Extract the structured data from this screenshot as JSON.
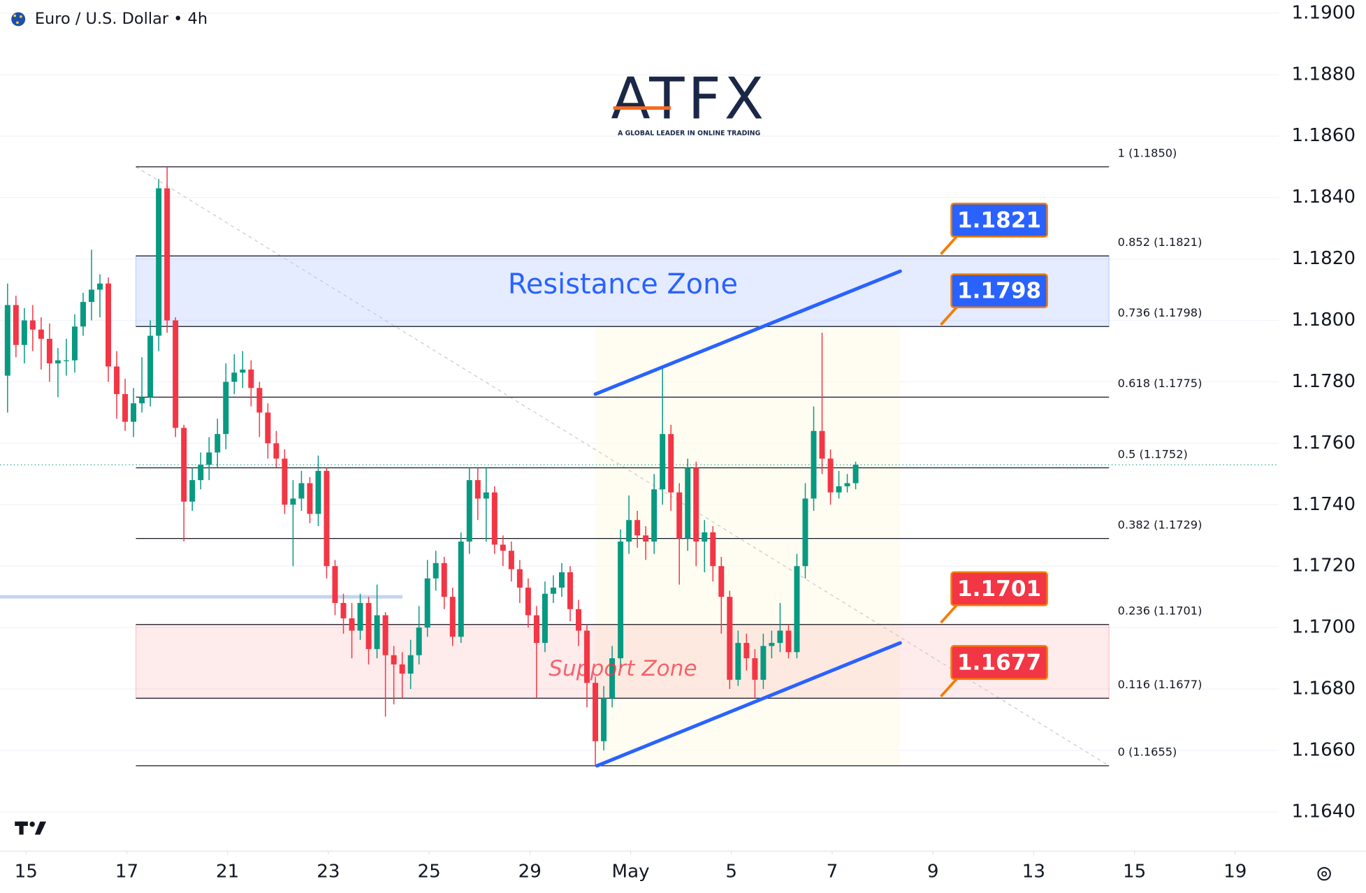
{
  "chart_data": {
    "type": "candlestick",
    "title": "Euro / U.S. Dollar • 4h",
    "watermark": {
      "name": "ATFX",
      "tagline": "A GLOBAL LEADER IN ONLINE TRADING"
    },
    "up_color": "#089981",
    "down_color": "#f23645",
    "xlim": [
      -0.9,
      151.4
    ],
    "xticks": [
      {
        "value": 2.2,
        "label": "15"
      },
      {
        "value": 14.2,
        "label": "17"
      },
      {
        "value": 26.2,
        "label": "21"
      },
      {
        "value": 38.2,
        "label": "23"
      },
      {
        "value": 50.2,
        "label": "25"
      },
      {
        "value": 62.2,
        "label": "29"
      },
      {
        "value": 74.2,
        "label": "May"
      },
      {
        "value": 86.2,
        "label": "5"
      },
      {
        "value": 98.2,
        "label": "7"
      },
      {
        "value": 110.2,
        "label": "9"
      },
      {
        "value": 122.2,
        "label": "13"
      },
      {
        "value": 134.2,
        "label": "15"
      },
      {
        "value": 146.2,
        "label": "19"
      }
    ],
    "ylim": [
      1.16272,
      1.19043
    ],
    "yticks": [
      {
        "value": 1.19,
        "label": "1.1900"
      },
      {
        "value": 1.188,
        "label": "1.1880"
      },
      {
        "value": 1.186,
        "label": "1.1860"
      },
      {
        "value": 1.184,
        "label": "1.1840"
      },
      {
        "value": 1.182,
        "label": "1.1820"
      },
      {
        "value": 1.18,
        "label": "1.1800"
      },
      {
        "value": 1.178,
        "label": "1.1780"
      },
      {
        "value": 1.176,
        "label": "1.1760"
      },
      {
        "value": 1.174,
        "label": "1.1740"
      },
      {
        "value": 1.172,
        "label": "1.1720"
      },
      {
        "value": 1.17,
        "label": "1.1700"
      },
      {
        "value": 1.168,
        "label": "1.1680"
      },
      {
        "value": 1.166,
        "label": "1.1660"
      },
      {
        "value": 1.164,
        "label": "1.1640"
      }
    ],
    "grid": true,
    "open": [
      1.1782,
      1.1805,
      1.1792,
      1.18,
      1.1797,
      1.1794,
      1.1786,
      1.1787,
      1.1787,
      1.1798,
      1.1806,
      1.181,
      1.1812,
      1.1785,
      1.1776,
      1.1767,
      1.1773,
      1.1775,
      1.1795,
      1.1843,
      1.18,
      1.1765,
      1.1741,
      1.1748,
      1.1753,
      1.1757,
      1.1763,
      1.178,
      1.1783,
      1.1784,
      1.1778,
      1.177,
      1.176,
      1.1755,
      1.174,
      1.1742,
      1.1747,
      1.1737,
      1.1751,
      1.172,
      1.1708,
      1.1703,
      1.1699,
      1.1708,
      1.1693,
      1.1704,
      1.1691,
      1.1688,
      1.1685,
      1.1691,
      1.17,
      1.1716,
      1.1721,
      1.171,
      1.1697,
      1.1728,
      1.1748,
      1.1742,
      1.1744,
      1.1727,
      1.1725,
      1.1719,
      1.1713,
      1.1704,
      1.1695,
      1.1711,
      1.1713,
      1.1718,
      1.1706,
      1.1699,
      1.1682,
      1.1663,
      1.1677,
      1.169,
      1.1728,
      1.1735,
      1.173,
      1.1728,
      1.1745,
      1.1763,
      1.1744,
      1.1729,
      1.1752,
      1.1728,
      1.1731,
      1.172,
      1.171,
      1.1683,
      1.1695,
      1.169,
      1.1683,
      1.1694,
      1.1695,
      1.1699,
      1.1692,
      1.172,
      1.1742,
      1.1764,
      1.1755,
      1.1744,
      1.1746,
      1.1747
    ],
    "high": [
      1.1812,
      1.1808,
      1.1804,
      1.1805,
      1.1801,
      1.1799,
      1.1791,
      1.1794,
      1.1802,
      1.1809,
      1.1823,
      1.1815,
      1.1814,
      1.179,
      1.1781,
      1.1778,
      1.1788,
      1.18,
      1.1846,
      1.185,
      1.1801,
      1.1766,
      1.1752,
      1.1757,
      1.1762,
      1.1768,
      1.1786,
      1.1789,
      1.179,
      1.1787,
      1.178,
      1.1773,
      1.1764,
      1.1758,
      1.1748,
      1.1751,
      1.1749,
      1.1756,
      1.1752,
      1.1722,
      1.1711,
      1.1708,
      1.1711,
      1.171,
      1.1714,
      1.1705,
      1.1694,
      1.1692,
      1.1696,
      1.1707,
      1.1722,
      1.1725,
      1.1723,
      1.1713,
      1.1731,
      1.1752,
      1.1752,
      1.1752,
      1.1746,
      1.173,
      1.1728,
      1.1722,
      1.1716,
      1.1707,
      1.1715,
      1.1717,
      1.1721,
      1.172,
      1.1709,
      1.1701,
      1.1684,
      1.1681,
      1.1694,
      1.1732,
      1.1743,
      1.1738,
      1.1733,
      1.175,
      1.1785,
      1.1766,
      1.1747,
      1.1755,
      1.1754,
      1.1735,
      1.1733,
      1.1723,
      1.1712,
      1.1699,
      1.1698,
      1.1693,
      1.1698,
      1.1699,
      1.1708,
      1.1701,
      1.1724,
      1.1747,
      1.1772,
      1.1796,
      1.1758,
      1.1751,
      1.175,
      1.1754
    ],
    "low": [
      1.177,
      1.1788,
      1.1786,
      1.179,
      1.1784,
      1.178,
      1.1775,
      1.1782,
      1.1783,
      1.1795,
      1.18,
      1.1801,
      1.178,
      1.1768,
      1.1764,
      1.1762,
      1.177,
      1.1772,
      1.179,
      1.1796,
      1.1762,
      1.1728,
      1.1738,
      1.1745,
      1.1748,
      1.1752,
      1.1758,
      1.1776,
      1.1778,
      1.1772,
      1.1762,
      1.1755,
      1.1752,
      1.1737,
      1.172,
      1.1738,
      1.1734,
      1.1733,
      1.1716,
      1.1704,
      1.1698,
      1.169,
      1.1696,
      1.1688,
      1.169,
      1.1671,
      1.1675,
      1.1677,
      1.168,
      1.1688,
      1.1697,
      1.1712,
      1.1706,
      1.1694,
      1.1695,
      1.1724,
      1.1735,
      1.1728,
      1.1724,
      1.172,
      1.1715,
      1.1708,
      1.17,
      1.1677,
      1.1692,
      1.1708,
      1.171,
      1.1702,
      1.1694,
      1.1674,
      1.1655,
      1.166,
      1.1674,
      1.1687,
      1.1724,
      1.1726,
      1.1722,
      1.1724,
      1.174,
      1.1738,
      1.1714,
      1.1725,
      1.172,
      1.1718,
      1.1715,
      1.1698,
      1.168,
      1.1681,
      1.1686,
      1.1677,
      1.168,
      1.169,
      1.1692,
      1.169,
      1.169,
      1.1716,
      1.1738,
      1.175,
      1.174,
      1.1742,
      1.1744,
      1.1745
    ],
    "close": [
      1.1805,
      1.1792,
      1.18,
      1.1797,
      1.1794,
      1.1786,
      1.1787,
      1.1787,
      1.1798,
      1.1806,
      1.181,
      1.1812,
      1.1785,
      1.1776,
      1.1767,
      1.1773,
      1.1775,
      1.1795,
      1.1843,
      1.18,
      1.1765,
      1.1741,
      1.1748,
      1.1753,
      1.1757,
      1.1763,
      1.178,
      1.1783,
      1.1784,
      1.1778,
      1.177,
      1.176,
      1.1755,
      1.174,
      1.1742,
      1.1747,
      1.1737,
      1.1751,
      1.172,
      1.1708,
      1.1703,
      1.1699,
      1.1708,
      1.1693,
      1.1704,
      1.1691,
      1.1688,
      1.1685,
      1.1691,
      1.17,
      1.1716,
      1.1721,
      1.171,
      1.1697,
      1.1728,
      1.1748,
      1.1742,
      1.1744,
      1.1727,
      1.1725,
      1.1719,
      1.1713,
      1.1704,
      1.1695,
      1.1711,
      1.1713,
      1.1718,
      1.1706,
      1.1699,
      1.1682,
      1.1663,
      1.1677,
      1.169,
      1.1728,
      1.1735,
      1.173,
      1.1728,
      1.1745,
      1.1763,
      1.1744,
      1.1729,
      1.1752,
      1.1728,
      1.1731,
      1.172,
      1.171,
      1.1683,
      1.1695,
      1.169,
      1.1683,
      1.1694,
      1.1695,
      1.1699,
      1.1692,
      1.172,
      1.1742,
      1.1764,
      1.1755,
      1.1744,
      1.1746,
      1.1747,
      1.1753
    ],
    "fib_levels": [
      {
        "value": 1.185,
        "label": "1 (1.1850)"
      },
      {
        "value": 1.1821,
        "label": "0.852 (1.1821)"
      },
      {
        "value": 1.1798,
        "label": "0.736 (1.1798)"
      },
      {
        "value": 1.1775,
        "label": "0.618 (1.1775)"
      },
      {
        "value": 1.1752,
        "label": "0.5 (1.1752)"
      },
      {
        "value": 1.1729,
        "label": "0.382 (1.1729)"
      },
      {
        "value": 1.1701,
        "label": "0.236 (1.1701)"
      },
      {
        "value": 1.1677,
        "label": "0.116 (1.1677)"
      },
      {
        "value": 1.1655,
        "label": "0 (1.1655)"
      }
    ],
    "zones": [
      {
        "name": "Resistance Zone",
        "color": "#2962ff",
        "from": 1.1798,
        "to": 1.1821
      },
      {
        "name": "Support Zone",
        "color": "#f23645",
        "from": 1.1677,
        "to": 1.1701
      }
    ],
    "trendlines": [
      {
        "color": "#2962ff",
        "x": [
          70.0,
          106.3
        ],
        "y": [
          1.1776,
          1.1816
        ]
      },
      {
        "color": "#2962ff",
        "x": [
          70.2,
          106.3
        ],
        "y": [
          1.1655,
          1.1695
        ]
      }
    ],
    "hline": {
      "value": 1.171,
      "color": "#c5d5ef"
    }
  }
}
